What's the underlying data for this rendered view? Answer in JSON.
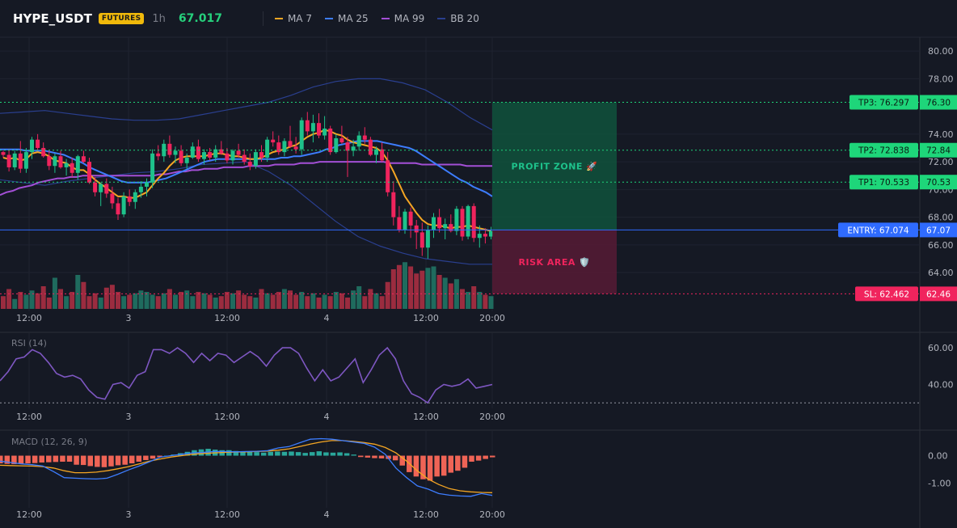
{
  "header": {
    "symbol": "HYPE_USDT",
    "badge": "FUTURES",
    "timeframe": "1h",
    "price": "67.017",
    "legend": [
      {
        "name": "MA 7",
        "color": "#f5a623"
      },
      {
        "name": "MA 25",
        "color": "#3d7dff"
      },
      {
        "name": "MA 99",
        "color": "#a34fd6"
      },
      {
        "name": "BB 20",
        "color": "#2a3f8f"
      }
    ]
  },
  "colors": {
    "bull": "#1ec28b",
    "bear": "#f0245d",
    "vol_bull": "#1f6b5e",
    "vol_bear": "#9b2c3f",
    "rsi": "#7e57c2",
    "macd": "#3d7dff",
    "signal": "#f5a623",
    "hist_pos": "#2aa79b",
    "hist_neg": "#ef6456"
  },
  "chart_data": {
    "type": "candlestick",
    "time_labels": [
      "12:00",
      "3",
      "12:00",
      "4",
      "12:00",
      "20:00"
    ],
    "candles": [
      [
        72.7,
        72.8,
        72.3,
        72.5
      ],
      [
        72.5,
        72.9,
        71.3,
        71.6
      ],
      [
        71.6,
        72.8,
        71.4,
        72.6
      ],
      [
        72.6,
        73.5,
        71.2,
        71.5
      ],
      [
        71.5,
        73.0,
        71.2,
        72.7
      ],
      [
        72.7,
        73.8,
        72.2,
        73.6
      ],
      [
        73.6,
        74.0,
        72.8,
        73.0
      ],
      [
        73.0,
        73.4,
        72.3,
        72.4
      ],
      [
        72.4,
        72.8,
        71.4,
        71.7
      ],
      [
        71.7,
        72.6,
        71.2,
        72.4
      ],
      [
        72.4,
        72.8,
        71.5,
        71.6
      ],
      [
        71.6,
        72.2,
        71.0,
        71.9
      ],
      [
        71.9,
        72.3,
        70.9,
        71.2
      ],
      [
        71.2,
        72.5,
        70.7,
        72.4
      ],
      [
        72.4,
        72.8,
        71.9,
        72.0
      ],
      [
        72.0,
        72.3,
        70.4,
        70.5
      ],
      [
        70.5,
        70.9,
        69.5,
        69.8
      ],
      [
        69.8,
        70.5,
        68.8,
        70.4
      ],
      [
        70.4,
        70.8,
        69.4,
        69.7
      ],
      [
        69.7,
        70.2,
        68.6,
        69.0
      ],
      [
        69.0,
        69.4,
        67.8,
        68.2
      ],
      [
        68.2,
        69.8,
        68.0,
        69.5
      ],
      [
        69.5,
        70.0,
        68.8,
        69.1
      ],
      [
        69.1,
        70.0,
        68.6,
        69.8
      ],
      [
        69.8,
        70.6,
        69.4,
        70.2
      ],
      [
        70.2,
        70.8,
        69.5,
        70.5
      ],
      [
        70.5,
        72.9,
        70.1,
        72.6
      ],
      [
        72.6,
        73.2,
        72.1,
        72.4
      ],
      [
        72.4,
        73.6,
        72.0,
        73.3
      ],
      [
        73.3,
        73.9,
        72.3,
        72.5
      ],
      [
        72.5,
        73.1,
        71.9,
        72.8
      ],
      [
        72.8,
        73.2,
        71.7,
        71.9
      ],
      [
        71.9,
        72.6,
        71.5,
        72.3
      ],
      [
        72.3,
        73.4,
        72.2,
        73.1
      ],
      [
        73.1,
        73.6,
        72.0,
        72.2
      ],
      [
        72.2,
        72.9,
        71.8,
        72.7
      ],
      [
        72.7,
        73.0,
        72.1,
        72.3
      ],
      [
        72.3,
        73.2,
        72.0,
        72.9
      ],
      [
        72.9,
        73.5,
        72.5,
        72.6
      ],
      [
        72.6,
        73.0,
        71.9,
        72.1
      ],
      [
        72.1,
        72.9,
        71.8,
        72.8
      ],
      [
        72.8,
        73.3,
        72.3,
        72.5
      ],
      [
        72.5,
        72.9,
        71.8,
        72.0
      ],
      [
        72.0,
        72.6,
        71.4,
        71.7
      ],
      [
        71.7,
        72.9,
        71.5,
        72.7
      ],
      [
        72.7,
        73.2,
        72.0,
        72.3
      ],
      [
        72.3,
        73.8,
        72.0,
        73.6
      ],
      [
        73.6,
        74.2,
        73.1,
        73.4
      ],
      [
        73.4,
        73.9,
        72.5,
        72.7
      ],
      [
        72.7,
        73.7,
        72.4,
        73.5
      ],
      [
        73.5,
        74.6,
        73.0,
        73.1
      ],
      [
        73.1,
        73.8,
        72.6,
        72.9
      ],
      [
        72.9,
        75.2,
        72.5,
        75.0
      ],
      [
        75.0,
        75.6,
        73.9,
        74.2
      ],
      [
        74.2,
        75.4,
        73.4,
        74.8
      ],
      [
        74.8,
        75.5,
        73.7,
        73.9
      ],
      [
        73.9,
        75.3,
        73.6,
        74.4
      ],
      [
        74.4,
        74.6,
        72.5,
        72.7
      ],
      [
        72.7,
        74.0,
        72.6,
        73.7
      ],
      [
        73.7,
        74.6,
        73.3,
        73.4
      ],
      [
        73.4,
        73.8,
        70.9,
        72.8
      ],
      [
        72.8,
        73.6,
        72.4,
        73.1
      ],
      [
        73.1,
        74.2,
        72.8,
        73.9
      ],
      [
        73.9,
        74.5,
        73.3,
        73.6
      ],
      [
        73.6,
        73.8,
        72.4,
        72.5
      ],
      [
        72.5,
        73.1,
        71.9,
        72.9
      ],
      [
        72.9,
        73.4,
        72.0,
        72.1
      ],
      [
        72.1,
        72.7,
        69.5,
        69.8
      ],
      [
        69.8,
        70.6,
        67.4,
        68.0
      ],
      [
        68.0,
        68.8,
        66.9,
        67.1
      ],
      [
        67.1,
        68.6,
        66.8,
        68.4
      ],
      [
        68.4,
        68.7,
        66.5,
        67.4
      ],
      [
        67.4,
        67.8,
        65.7,
        66.9
      ],
      [
        66.9,
        67.6,
        65.2,
        65.8
      ],
      [
        65.8,
        67.4,
        65.0,
        67.1
      ],
      [
        67.1,
        68.3,
        66.5,
        68.0
      ],
      [
        68.0,
        68.6,
        66.9,
        67.2
      ],
      [
        67.2,
        67.9,
        66.4,
        67.5
      ],
      [
        67.5,
        68.2,
        66.9,
        67.0
      ],
      [
        67.0,
        68.8,
        66.7,
        68.6
      ],
      [
        68.6,
        68.8,
        66.3,
        66.6
      ],
      [
        66.6,
        68.9,
        66.4,
        68.8
      ],
      [
        68.8,
        69.0,
        66.2,
        66.5
      ],
      [
        66.5,
        67.4,
        65.8,
        66.8
      ],
      [
        66.8,
        67.2,
        66.1,
        66.6
      ],
      [
        66.6,
        67.3,
        66.4,
        67.0
      ]
    ],
    "volume": [
      9,
      14,
      7,
      12,
      10,
      13,
      11,
      16,
      8,
      22,
      14,
      9,
      12,
      24,
      19,
      9,
      11,
      8,
      15,
      17,
      12,
      9,
      10,
      11,
      13,
      12,
      10,
      9,
      11,
      14,
      10,
      12,
      13,
      9,
      12,
      11,
      10,
      8,
      9,
      12,
      11,
      13,
      10,
      9,
      8,
      14,
      11,
      10,
      12,
      14,
      13,
      10,
      12,
      9,
      11,
      8,
      10,
      9,
      12,
      11,
      8,
      13,
      16,
      9,
      14,
      11,
      9,
      19,
      28,
      31,
      33,
      30,
      25,
      27,
      29,
      30,
      24,
      22,
      18,
      21,
      14,
      12,
      16,
      12,
      10,
      9
    ],
    "overlays": {
      "ma7": [
        72.3,
        72.2,
        72.3,
        72.1,
        72.2,
        72.6,
        72.7,
        72.6,
        72.4,
        72.1,
        72.0,
        71.9,
        71.6,
        71.4,
        71.4,
        71.1,
        70.7,
        70.4,
        70.1,
        69.8,
        69.5,
        69.5,
        69.4,
        69.4,
        69.6,
        69.8,
        70.3,
        70.8,
        71.2,
        71.7,
        72.1,
        72.3,
        72.4,
        72.4,
        72.4,
        72.4,
        72.5,
        72.6,
        72.6,
        72.5,
        72.4,
        72.4,
        72.3,
        72.2,
        72.2,
        72.3,
        72.5,
        72.7,
        72.8,
        72.9,
        73.1,
        73.2,
        73.5,
        73.8,
        74.0,
        74.1,
        74.3,
        74.2,
        74.0,
        73.9,
        73.6,
        73.4,
        73.3,
        73.2,
        73.1,
        73.0,
        72.7,
        72.1,
        71.3,
        70.4,
        69.5,
        68.9,
        68.3,
        67.8,
        67.5,
        67.4,
        67.4,
        67.3,
        67.2,
        67.3,
        67.3,
        67.4,
        67.3,
        67.2,
        67.1,
        67.0
      ],
      "ma25": [
        72.9,
        72.9,
        72.9,
        72.9,
        72.8,
        72.8,
        72.8,
        72.8,
        72.7,
        72.6,
        72.5,
        72.3,
        72.1,
        71.9,
        71.6,
        71.4,
        71.2,
        71.0,
        70.8,
        70.6,
        70.5,
        70.5,
        70.5,
        70.5,
        70.6,
        70.7,
        70.8,
        71.0,
        71.2,
        71.4,
        71.6,
        71.8,
        72.0,
        72.1,
        72.2,
        72.2,
        72.2,
        72.2,
        72.2,
        72.2,
        72.2,
        72.2,
        72.2,
        72.2,
        72.3,
        72.3,
        72.4,
        72.4,
        72.5,
        72.6,
        72.7,
        72.9,
        73.0,
        73.2,
        73.3,
        73.4,
        73.5,
        73.5,
        73.5,
        73.5,
        73.4,
        73.3,
        73.2,
        73.1,
        73.0,
        72.8,
        72.5,
        72.2,
        71.9,
        71.6,
        71.3,
        71.0,
        70.7,
        70.5,
        70.2,
        70.0,
        69.8,
        69.5
      ],
      "ma99": [
        69.6,
        69.8,
        69.9,
        70.1,
        70.2,
        70.3,
        70.5,
        70.6,
        70.7,
        70.8,
        70.8,
        70.9,
        70.9,
        71.0,
        71.0,
        71.0,
        71.0,
        71.0,
        71.0,
        71.0,
        71.0,
        71.0,
        71.0,
        71.0,
        71.0,
        71.1,
        71.1,
        71.2,
        71.3,
        71.3,
        71.4,
        71.4,
        71.5,
        71.5,
        71.5,
        71.6,
        71.6,
        71.6,
        71.6,
        71.7,
        71.7,
        71.7,
        71.7,
        71.8,
        71.8,
        71.8,
        71.8,
        71.9,
        71.9,
        71.9,
        72.0,
        72.0,
        72.0,
        72.0,
        72.0,
        72.0,
        72.0,
        72.0,
        72.0,
        72.0,
        72.0,
        71.9,
        71.9,
        71.9,
        71.9,
        71.9,
        71.8,
        71.8,
        71.8,
        71.8,
        71.8,
        71.8,
        71.8,
        71.7,
        71.7,
        71.7,
        71.7,
        71.7
      ],
      "bb_upper": [
        75.5,
        75.6,
        75.7,
        75.5,
        75.3,
        75.1,
        75.0,
        75.0,
        75.1,
        75.4,
        75.7,
        76.0,
        76.3,
        76.8,
        77.4,
        77.8,
        78.0,
        78.0,
        77.7,
        77.2,
        76.3,
        75.2,
        74.3
      ],
      "bb_lower": [
        70.7,
        70.5,
        70.3,
        70.6,
        70.8,
        71.0,
        71.2,
        71.3,
        71.5,
        71.8,
        71.9,
        72.0,
        71.3,
        70.3,
        69.0,
        67.7,
        66.6,
        65.9,
        65.4,
        65.0,
        64.8,
        64.6,
        64.6
      ]
    },
    "trade": {
      "tp3": 76.297,
      "tp2": 72.838,
      "tp1": 70.533,
      "entry": 67.074,
      "sl": 62.462,
      "tp3_label": "TP3: 76.297",
      "tp2_label": "TP2: 72.838",
      "tp1_label": "TP1: 70.533",
      "entry_label": "ENTRY: 67.074",
      "sl_label": "SL: 62.462",
      "tp3_axis": "76.30",
      "tp2_axis": "72.84",
      "tp1_axis": "70.53",
      "entry_axis": "67.07",
      "sl_axis": "62.46",
      "profit_text": "PROFIT ZONE 🚀",
      "risk_text": "RISK AREA 🛡️"
    },
    "price_axis": {
      "ylim": [
        61.2,
        81.0
      ],
      "ticks": [
        "80.00",
        "78.00",
        "74.00",
        "72.00",
        "70.00",
        "68.00",
        "66.00",
        "64.00"
      ]
    },
    "rsi": {
      "label": "RSI (14)",
      "ylim": [
        27,
        68
      ],
      "ticks": [
        "60.00",
        "40.00"
      ],
      "dotted_level": 30,
      "values": [
        42,
        47,
        54,
        55,
        59,
        57,
        52,
        46,
        44,
        45,
        43,
        37,
        33,
        32,
        40,
        41,
        38,
        45,
        47,
        59,
        59,
        57,
        60,
        57,
        52,
        57,
        53,
        57,
        56,
        52,
        55,
        58,
        55,
        50,
        56,
        60,
        60,
        57,
        49,
        42,
        48,
        42,
        44,
        49,
        54,
        41,
        48,
        56,
        60,
        54,
        42,
        35,
        33,
        30,
        37,
        40,
        39,
        40,
        43,
        38,
        39,
        40
      ]
    },
    "macd": {
      "label": "MACD (12, 26, 9)",
      "ylim": [
        -1.9,
        0.9
      ],
      "ticks": [
        "0.00",
        "-1.00"
      ],
      "hist": [
        -0.28,
        -0.3,
        -0.31,
        -0.3,
        -0.28,
        -0.27,
        -0.25,
        -0.24,
        -0.23,
        -0.22,
        -0.22,
        -0.33,
        -0.34,
        -0.38,
        -0.41,
        -0.42,
        -0.39,
        -0.35,
        -0.33,
        -0.28,
        -0.22,
        -0.16,
        -0.11,
        -0.05,
        0.0,
        0.04,
        0.09,
        0.14,
        0.2,
        0.23,
        0.25,
        0.22,
        0.2,
        0.2,
        0.17,
        0.16,
        0.16,
        0.13,
        0.11,
        0.14,
        0.15,
        0.14,
        0.15,
        0.13,
        0.1,
        0.13,
        0.16,
        0.12,
        0.11,
        0.12,
        0.09,
        0.04,
        -0.05,
        -0.07,
        -0.09,
        -0.1,
        -0.12,
        -0.17,
        -0.36,
        -0.6,
        -0.76,
        -0.86,
        -0.91,
        -0.76,
        -0.73,
        -0.62,
        -0.55,
        -0.44,
        -0.22,
        -0.18,
        -0.12,
        -0.06
      ],
      "macd_line": [
        -0.2,
        -0.25,
        -0.3,
        -0.33,
        -0.38,
        -0.58,
        -0.8,
        -0.82,
        -0.84,
        -0.85,
        -0.82,
        -0.68,
        -0.52,
        -0.38,
        -0.22,
        -0.05,
        0.0,
        0.05,
        0.1,
        0.12,
        0.15,
        0.15,
        0.14,
        0.15,
        0.16,
        0.18,
        0.28,
        0.33,
        0.47,
        0.6,
        0.62,
        0.6,
        0.55,
        0.5,
        0.45,
        0.31,
        0.05,
        -0.45,
        -0.8,
        -1.1,
        -1.22,
        -1.38,
        -1.44,
        -1.47,
        -1.48,
        -1.38,
        -1.45
      ],
      "signal_line": [
        -0.35,
        -0.36,
        -0.37,
        -0.38,
        -0.4,
        -0.45,
        -0.55,
        -0.62,
        -0.62,
        -0.6,
        -0.55,
        -0.48,
        -0.4,
        -0.3,
        -0.2,
        -0.12,
        -0.05,
        0.0,
        0.05,
        0.08,
        0.1,
        0.12,
        0.13,
        0.14,
        0.15,
        0.17,
        0.2,
        0.25,
        0.33,
        0.42,
        0.5,
        0.55,
        0.55,
        0.52,
        0.48,
        0.42,
        0.3,
        0.1,
        -0.2,
        -0.55,
        -0.85,
        -1.05,
        -1.2,
        -1.28,
        -1.32,
        -1.34,
        -1.35
      ]
    }
  }
}
